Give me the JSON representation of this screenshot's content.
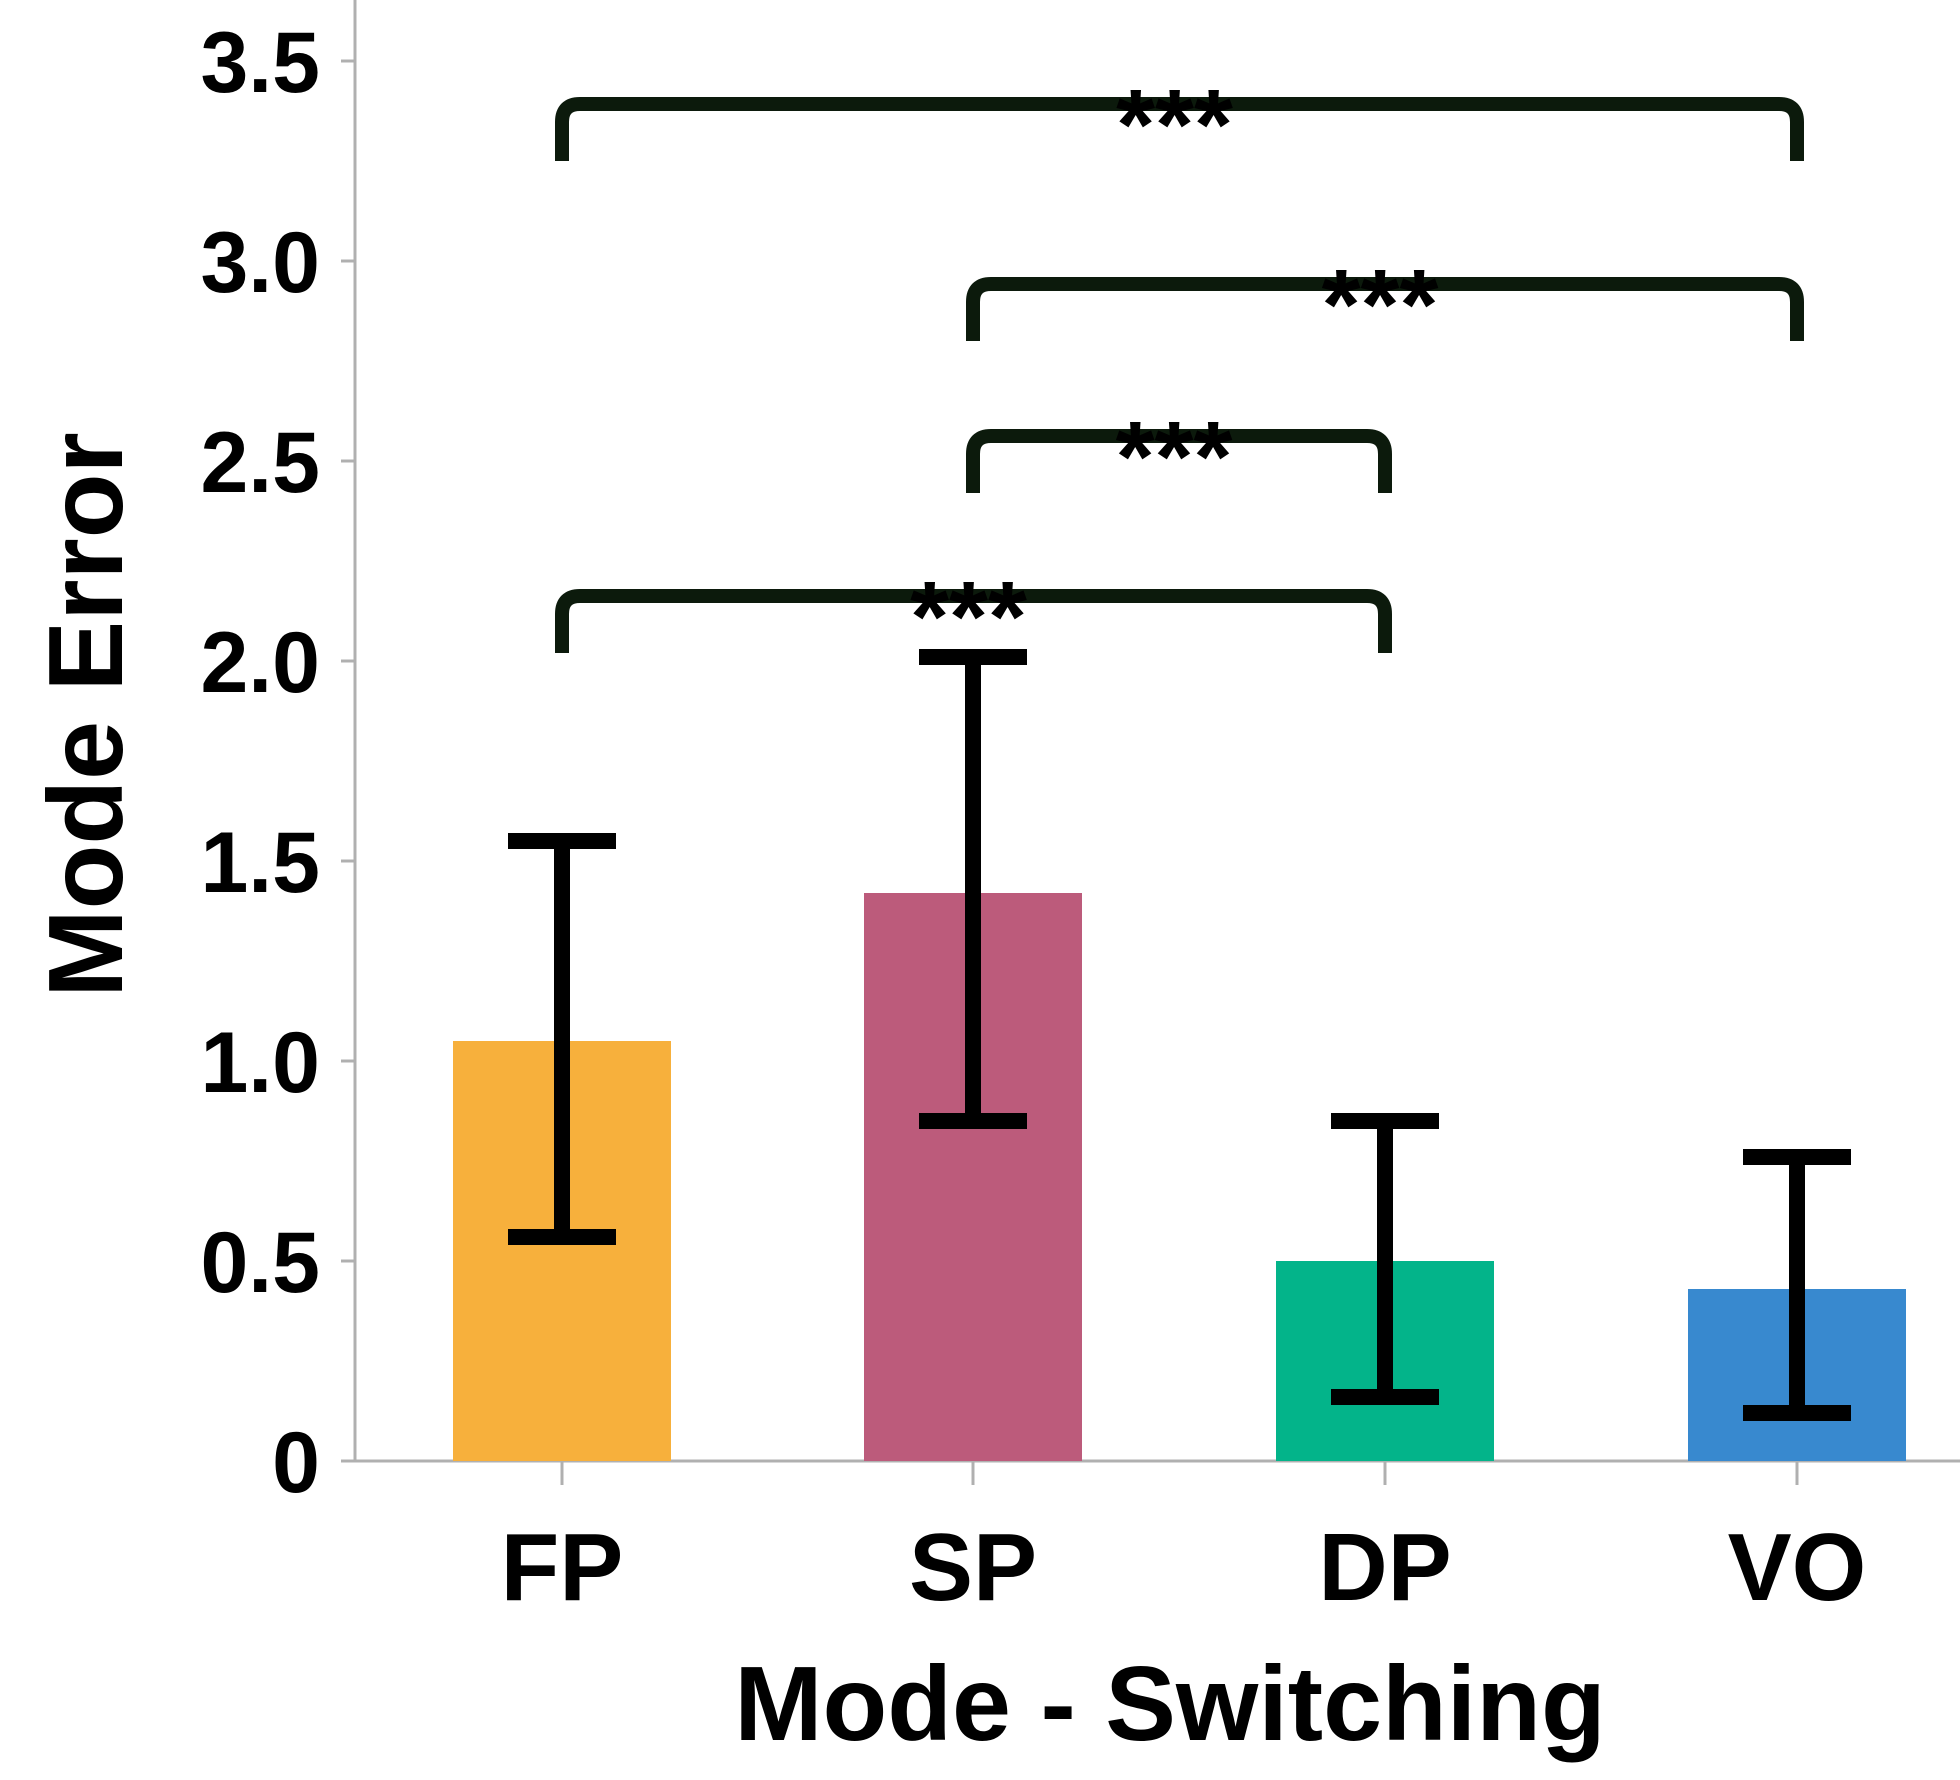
{
  "chart_data": {
    "type": "bar",
    "title": "",
    "xlabel": "Mode - Switching",
    "ylabel": "Mode Error",
    "ylim": [
      0,
      3.6
    ],
    "yticks": [
      {
        "value": 0,
        "label": "0"
      },
      {
        "value": 0.5,
        "label": "0.5"
      },
      {
        "value": 1.0,
        "label": "1.0"
      },
      {
        "value": 1.5,
        "label": "1.5"
      },
      {
        "value": 2.0,
        "label": "2.0"
      },
      {
        "value": 2.5,
        "label": "2.5"
      },
      {
        "value": 3.0,
        "label": "3.0"
      },
      {
        "value": 3.5,
        "label": "3.5"
      }
    ],
    "categories": [
      "FP",
      "SP",
      "DP",
      "VO"
    ],
    "values": [
      1.05,
      1.42,
      0.5,
      0.43
    ],
    "error_low": [
      0.56,
      0.85,
      0.16,
      0.12
    ],
    "error_high": [
      1.55,
      2.01,
      0.85,
      0.76
    ],
    "colors": [
      "#F7B03C",
      "#BC5B7B",
      "#03B48A",
      "#3889CF"
    ],
    "significance": [
      {
        "from": 0,
        "to": 3,
        "y": 3.28,
        "label": "***"
      },
      {
        "from": 1,
        "to": 3,
        "y": 2.83,
        "label": "***"
      },
      {
        "from": 1,
        "to": 2,
        "y": 2.45,
        "label": "***"
      },
      {
        "from": 0,
        "to": 2,
        "y": 2.05,
        "label": "***"
      }
    ],
    "bracket_color": "#0c1a0c",
    "grid": false
  }
}
